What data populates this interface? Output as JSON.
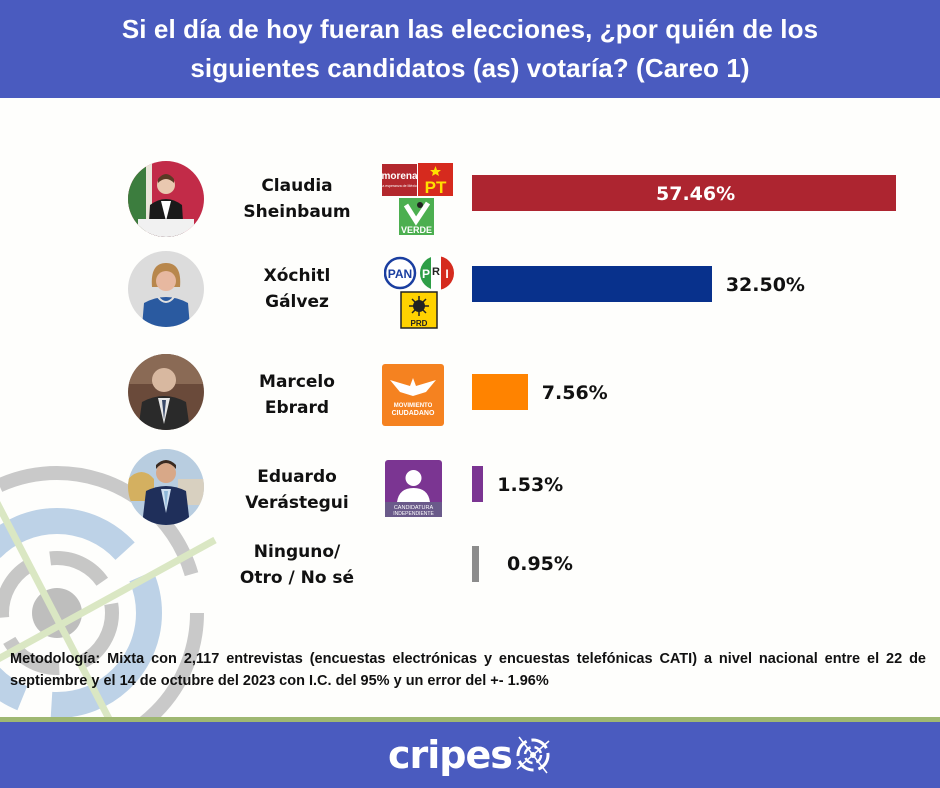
{
  "header": {
    "title_line1": "Si el día de hoy fueran las elecciones, ¿por quién de los",
    "title_line2": "siguientes candidatos (as) votaría? (Careo 1)"
  },
  "chart_data": {
    "type": "bar",
    "orientation": "horizontal",
    "title": "Si el día de hoy fueran las elecciones, ¿por quién de los siguientes candidatos (as) votaría? (Careo 1)",
    "xlabel": "",
    "ylabel": "",
    "unit": "%",
    "categories": [
      "Claudia Sheinbaum",
      "Xóchitl Gálvez",
      "Marcelo Ebrard",
      "Eduardo Verástegui",
      "Ninguno/ Otro / No sé"
    ],
    "values": [
      57.46,
      32.5,
      7.56,
      1.53,
      0.95
    ],
    "labels": [
      "57.46%",
      "32.50%",
      "7.56%",
      "1.53%",
      "0.95%"
    ],
    "colors": [
      "#ad2530",
      "#08318c",
      "#ff8300",
      "#7b3592",
      "#8c8c8c"
    ],
    "grid": false,
    "legend": "none"
  },
  "candidates": [
    {
      "name_line1": "Claudia",
      "name_line2": "Sheinbaum",
      "parties": [
        "morena",
        "PT",
        "VERDE"
      ],
      "party_tagline": "La esperanza de México"
    },
    {
      "name_line1": "Xóchitl",
      "name_line2": "Gálvez",
      "parties": [
        "PAN",
        "PRI",
        "PRD"
      ]
    },
    {
      "name_line1": "Marcelo",
      "name_line2": "Ebrard",
      "parties": [
        "MOVIMIENTO",
        "CIUDADANO"
      ]
    },
    {
      "name_line1": "Eduardo",
      "name_line2": "Verástegui",
      "parties": [
        "CANDIDATURA",
        "INDEPENDIENTE"
      ]
    },
    {
      "name_line1": "Ninguno/",
      "name_line2": "Otro / No sé",
      "parties": []
    }
  ],
  "party_labels": {
    "morena": "morena",
    "morena_tag": "La esperanza de México",
    "pt": "PT",
    "verde": "VERDE",
    "pan": "PAN",
    "pri_p": "P",
    "pri_r": "R",
    "pri_i": "I",
    "prd": "PRD",
    "mc_line1": "MOVIMIENTO",
    "mc_line2": "CIUDADANO",
    "ind_line1": "CANDIDATURA",
    "ind_line2": "INDEPENDIENTE"
  },
  "methodology": "Metodología: Mixta con 2,117 entrevistas (encuestas electrónicas y encuestas telefónicas CATI) a nivel nacional entre el 22 de septiembre y el 14 de octubre del 2023 con I.C. del 95% y un error del +- 1.96%",
  "footer": {
    "brand": "cripes"
  },
  "colors": {
    "header_bg": "#4a5bbf",
    "footer_bg": "#4a5bbf",
    "accent_green": "#9fb872"
  }
}
